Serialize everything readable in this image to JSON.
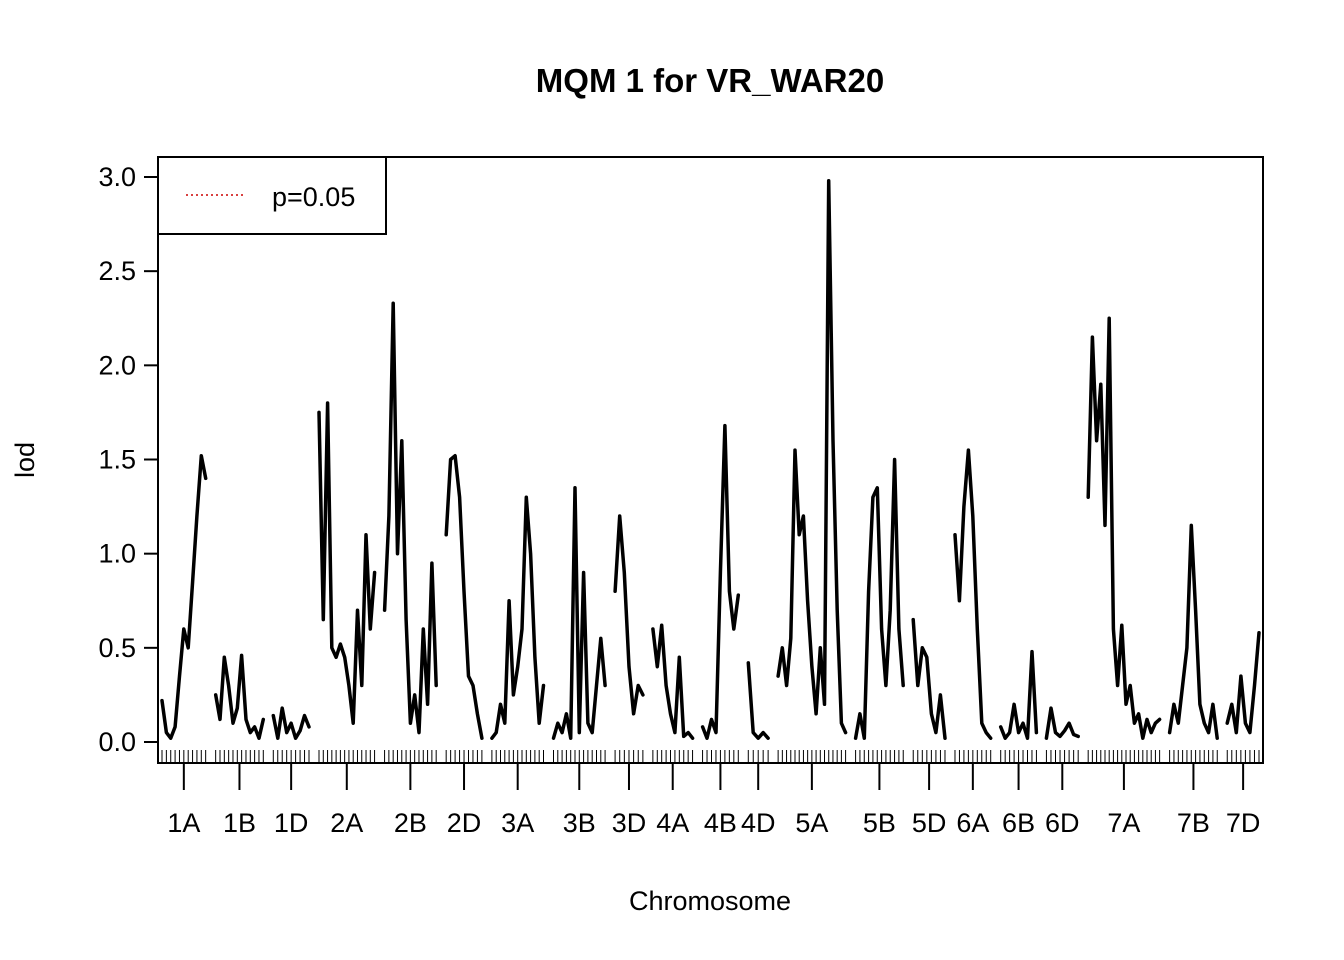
{
  "chart_data": {
    "type": "line",
    "title": "MQM 1 for VR_WAR20",
    "xlabel": "Chromosome",
    "ylabel": "lod",
    "ylim": [
      0,
      3.0
    ],
    "yticks": [
      0.0,
      0.5,
      1.0,
      1.5,
      2.0,
      2.5,
      3.0
    ],
    "ytick_labels": [
      "0.0",
      "0.5",
      "1.0",
      "1.5",
      "2.0",
      "2.5",
      "3.0"
    ],
    "legend": {
      "placement": "top-left",
      "entries": [
        {
          "label": "p=0.05",
          "color": "#cc0000",
          "style": "dotted"
        }
      ]
    },
    "line_color": "#000000",
    "chromosomes": [
      {
        "name": "1A",
        "values": [
          0.22,
          0.05,
          0.02,
          0.08,
          0.35,
          0.6,
          0.5,
          0.85,
          1.2,
          1.52,
          1.4
        ]
      },
      {
        "name": "1B",
        "values": [
          0.25,
          0.12,
          0.45,
          0.3,
          0.1,
          0.18,
          0.46,
          0.12,
          0.05,
          0.08,
          0.02,
          0.12
        ]
      },
      {
        "name": "1D",
        "values": [
          0.14,
          0.02,
          0.18,
          0.05,
          0.1,
          0.02,
          0.06,
          0.14,
          0.08
        ]
      },
      {
        "name": "2A",
        "values": [
          1.75,
          0.65,
          1.8,
          0.5,
          0.45,
          0.52,
          0.45,
          0.3,
          0.1,
          0.7,
          0.3,
          1.1,
          0.6,
          0.9
        ]
      },
      {
        "name": "2B",
        "values": [
          0.7,
          1.2,
          2.33,
          1.0,
          1.6,
          0.65,
          0.1,
          0.25,
          0.05,
          0.6,
          0.2,
          0.95,
          0.3
        ]
      },
      {
        "name": "2D",
        "values": [
          1.1,
          1.5,
          1.52,
          1.3,
          0.8,
          0.35,
          0.3,
          0.15,
          0.02
        ]
      },
      {
        "name": "3A",
        "values": [
          0.02,
          0.05,
          0.2,
          0.1,
          0.75,
          0.25,
          0.4,
          0.6,
          1.3,
          1.0,
          0.45,
          0.1,
          0.3
        ]
      },
      {
        "name": "3B",
        "values": [
          0.02,
          0.1,
          0.05,
          0.15,
          0.02,
          1.35,
          0.05,
          0.9,
          0.1,
          0.05,
          0.3,
          0.55,
          0.3
        ]
      },
      {
        "name": "3D",
        "values": [
          0.8,
          1.2,
          0.9,
          0.4,
          0.15,
          0.3,
          0.25
        ]
      },
      {
        "name": "4A",
        "values": [
          0.6,
          0.4,
          0.62,
          0.3,
          0.15,
          0.05,
          0.45,
          0.03,
          0.05,
          0.02
        ]
      },
      {
        "name": "4B",
        "values": [
          0.08,
          0.02,
          0.12,
          0.05,
          0.9,
          1.68,
          0.8,
          0.6,
          0.78
        ]
      },
      {
        "name": "4D",
        "values": [
          0.42,
          0.05,
          0.02,
          0.05,
          0.02
        ]
      },
      {
        "name": "5A",
        "values": [
          0.35,
          0.5,
          0.3,
          0.55,
          1.55,
          1.1,
          1.2,
          0.75,
          0.4,
          0.15,
          0.5,
          0.2,
          2.98,
          1.6,
          0.7,
          0.1,
          0.05
        ]
      },
      {
        "name": "5B",
        "values": [
          0.02,
          0.15,
          0.02,
          0.8,
          1.3,
          1.35,
          0.6,
          0.3,
          0.7,
          1.5,
          0.6,
          0.3
        ]
      },
      {
        "name": "5D",
        "values": [
          0.65,
          0.3,
          0.5,
          0.45,
          0.15,
          0.05,
          0.25,
          0.02
        ]
      },
      {
        "name": "6A",
        "values": [
          1.1,
          0.75,
          1.25,
          1.55,
          1.2,
          0.6,
          0.1,
          0.05,
          0.02
        ]
      },
      {
        "name": "6B",
        "values": [
          0.08,
          0.02,
          0.05,
          0.2,
          0.05,
          0.1,
          0.02,
          0.48,
          0.05
        ]
      },
      {
        "name": "6D",
        "values": [
          0.02,
          0.18,
          0.05,
          0.03,
          0.06,
          0.1,
          0.04,
          0.03
        ]
      },
      {
        "name": "7A",
        "values": [
          1.3,
          2.15,
          1.6,
          1.9,
          1.15,
          2.25,
          0.6,
          0.3,
          0.62,
          0.2,
          0.3,
          0.1,
          0.15,
          0.02,
          0.12,
          0.05,
          0.1,
          0.12
        ]
      },
      {
        "name": "7B",
        "values": [
          0.05,
          0.2,
          0.1,
          0.3,
          0.5,
          1.15,
          0.7,
          0.2,
          0.1,
          0.05,
          0.2,
          0.02
        ]
      },
      {
        "name": "7D",
        "values": [
          0.1,
          0.2,
          0.05,
          0.35,
          0.1,
          0.05,
          0.3,
          0.58
        ]
      }
    ]
  }
}
